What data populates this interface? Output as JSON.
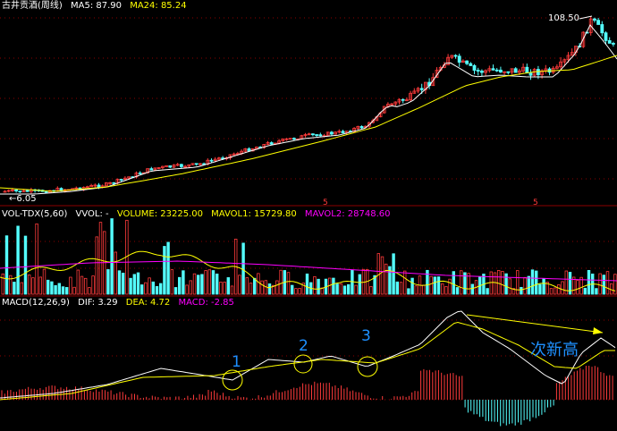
{
  "colors": {
    "background": "#000000",
    "up": "#ff3b3b",
    "down": "#54ffff",
    "ma_yellow": "#ffff00",
    "white": "#ffffff",
    "magenta": "#ff00ff",
    "grid_red": "#8b0000",
    "annotation_blue": "#1e90ff"
  },
  "price_panel": {
    "title": "古井贡酒(周线)",
    "ma5": "MA5: 87.90",
    "ma24": "MA24: 85.24",
    "high_label": "108.50",
    "low_label": "6.05"
  },
  "volume_panel": {
    "title": "VOL-TDX(5,60)",
    "vvol": "VVOL: -",
    "volume": "VOLUME: 23225.00",
    "mavol1": "MAVOL1: 15729.80",
    "mavol2": "MAVOL2: 28748.60",
    "marker": "5"
  },
  "macd_panel": {
    "title": "MACD(12,26,9)",
    "dif": "DIF: 3.29",
    "dea": "DEA: 4.72",
    "macd": "MACD: -2.85",
    "annotations": [
      {
        "number": "1"
      },
      {
        "number": "2"
      },
      {
        "number": "3"
      }
    ],
    "arrow_note": "次新高"
  }
}
